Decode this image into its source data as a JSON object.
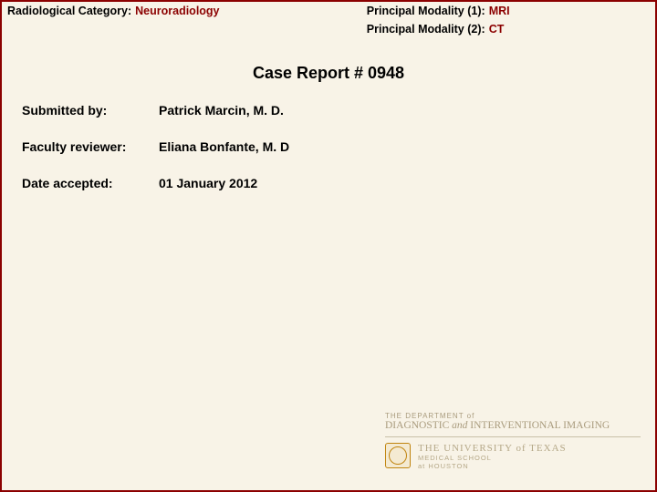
{
  "header": {
    "category_label": "Radiological Category:",
    "category_value": "Neuroradiology",
    "modality1_label": "Principal Modality (1):",
    "modality1_value": "MRI",
    "modality2_label": "Principal Modality (2):",
    "modality2_value": "CT"
  },
  "title": "Case Report # 0948",
  "fields": {
    "submitted_by_label": "Submitted by:",
    "submitted_by_value": "Patrick Marcin, M. D.",
    "faculty_reviewer_label": "Faculty reviewer:",
    "faculty_reviewer_value": "Eliana Bonfante, M. D",
    "date_accepted_label": "Date accepted:",
    "date_accepted_value": "01 January 2012"
  },
  "footer": {
    "dept_prefix": "THE DEPARTMENT of",
    "dept_name_1": "DIAGNOSTIC",
    "dept_name_and": "and",
    "dept_name_2": "INTERVENTIONAL IMAGING",
    "ut_line1": "THE UNIVERSITY of TEXAS",
    "ut_line2": "MEDICAL SCHOOL",
    "ut_line3": "at HOUSTON"
  },
  "colors": {
    "border": "#8b0000",
    "background": "#f8f3e7",
    "value_text": "#8b0000",
    "footer_text": "#a99b7d",
    "seal": "#c0840f"
  }
}
